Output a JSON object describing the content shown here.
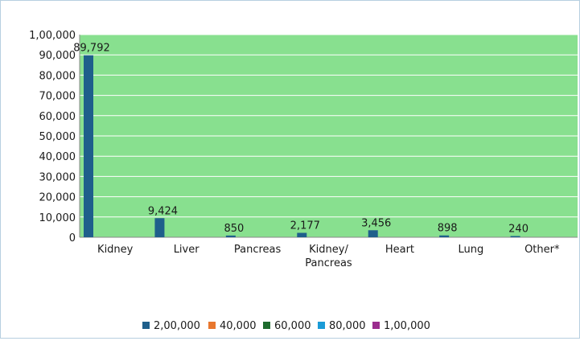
{
  "chart_data": {
    "type": "bar",
    "categories": [
      "Kidney",
      "Liver",
      "Pancreas",
      "Kidney/\nPancreas",
      "Heart",
      "Lung",
      "Other*"
    ],
    "series": [
      {
        "name": "2,00,000",
        "values": [
          89792,
          9424,
          850,
          2177,
          3456,
          898,
          240
        ],
        "color": "#1f5f8b"
      },
      {
        "name": "40,000",
        "values": [
          0,
          0,
          0,
          0,
          0,
          0,
          0
        ],
        "color": "#e8772e"
      },
      {
        "name": "60,000",
        "values": [
          0,
          0,
          0,
          0,
          0,
          0,
          0
        ],
        "color": "#1e6b2e"
      },
      {
        "name": "80,000",
        "values": [
          0,
          0,
          0,
          0,
          0,
          0,
          0
        ],
        "color": "#1a9bd7"
      },
      {
        "name": "1,00,000",
        "values": [
          0,
          0,
          0,
          0,
          0,
          0,
          0
        ],
        "color": "#9b2d8e"
      }
    ],
    "data_labels": [
      "89,792",
      "9,424",
      "850",
      "2,177",
      "3,456",
      "898",
      "240"
    ],
    "yticks": [
      0,
      10000,
      20000,
      30000,
      40000,
      50000,
      60000,
      70000,
      80000,
      90000,
      100000
    ],
    "ytick_labels": [
      "0",
      "10,000",
      "20,000",
      "30,000",
      "40,000",
      "50,000",
      "60,000",
      "70,000",
      "80,000",
      "90,000",
      "1,00,000"
    ],
    "ylim": [
      0,
      100000
    ],
    "title": "",
    "xlabel": "",
    "ylabel": "",
    "grid": true,
    "legend": "bottom",
    "plot_background": "#88e08f"
  }
}
